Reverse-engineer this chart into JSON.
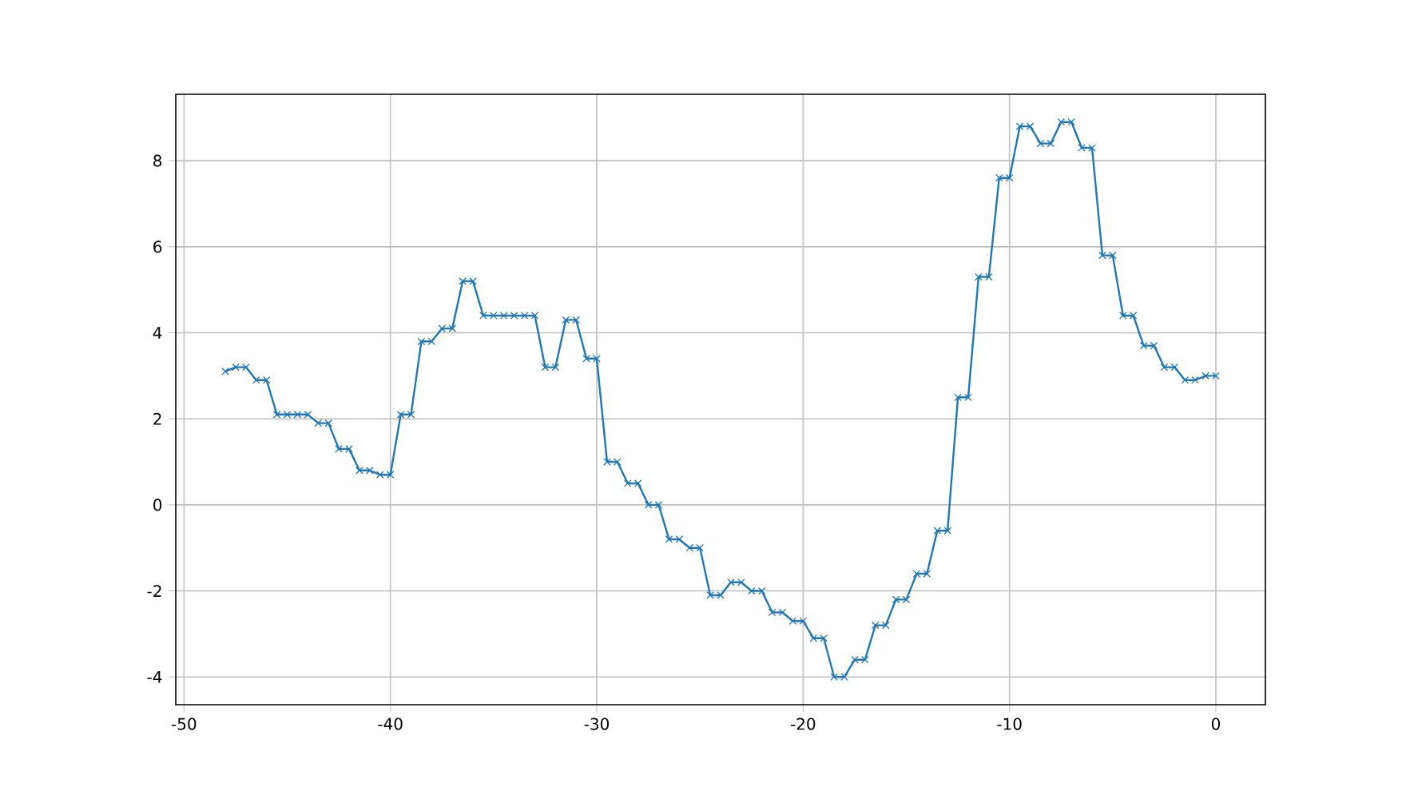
{
  "chart_data": {
    "type": "line",
    "x": [
      -48,
      -47.5,
      -47,
      -46.5,
      -46,
      -45.5,
      -45,
      -44.5,
      -44,
      -43.5,
      -43,
      -42.5,
      -42,
      -41.5,
      -41,
      -40.5,
      -40,
      -39.5,
      -39,
      -38.5,
      -38,
      -37.5,
      -37,
      -36.5,
      -36,
      -35.5,
      -35,
      -34.5,
      -34,
      -33.5,
      -33,
      -32.5,
      -32,
      -31.5,
      -31,
      -30.5,
      -30,
      -29.5,
      -29,
      -28.5,
      -28,
      -27.5,
      -27,
      -26.5,
      -26,
      -25.5,
      -25,
      -24.5,
      -24,
      -23.5,
      -23,
      -22.5,
      -22,
      -21.5,
      -21,
      -20.5,
      -20,
      -19.5,
      -19,
      -18.5,
      -18,
      -17.5,
      -17,
      -16.5,
      -16,
      -15.5,
      -15,
      -14.5,
      -14,
      -13.5,
      -13,
      -12.5,
      -12,
      -11.5,
      -11,
      -10.5,
      -10,
      -9.5,
      -9,
      -8.5,
      -8,
      -7.5,
      -7,
      -6.5,
      -6,
      -5.5,
      -5,
      -4.5,
      -4,
      -3.5,
      -3,
      -2.5,
      -2,
      -1.5,
      -1,
      -0.5,
      0
    ],
    "values": [
      3.1,
      3.2,
      3.2,
      2.9,
      2.9,
      2.1,
      2.1,
      2.1,
      2.1,
      1.9,
      1.9,
      1.3,
      1.3,
      0.8,
      0.8,
      0.7,
      0.7,
      2.1,
      2.1,
      3.8,
      3.8,
      4.1,
      4.1,
      5.2,
      5.2,
      4.4,
      4.4,
      4.4,
      4.4,
      4.4,
      4.4,
      3.2,
      3.2,
      4.3,
      4.3,
      3.4,
      3.4,
      1.0,
      1.0,
      0.5,
      0.5,
      0.0,
      0.0,
      -0.8,
      -0.8,
      -1.0,
      -1.0,
      -2.1,
      -2.1,
      -1.8,
      -1.8,
      -2.0,
      -2.0,
      -2.5,
      -2.5,
      -2.7,
      -2.7,
      -3.1,
      -3.1,
      -4.0,
      -4.0,
      -3.6,
      -3.6,
      -2.8,
      -2.8,
      -2.2,
      -2.2,
      -1.6,
      -1.6,
      -0.6,
      -0.6,
      2.5,
      2.5,
      5.3,
      5.3,
      7.6,
      7.6,
      8.8,
      8.8,
      8.4,
      8.4,
      8.9,
      8.9,
      8.3,
      8.3,
      5.8,
      5.8,
      4.4,
      4.4,
      3.7,
      3.7,
      3.2,
      3.2,
      2.9,
      2.9,
      3.0,
      3.0
    ],
    "color": "#1f77b4",
    "marker": "cross",
    "xlim": [
      -50.4,
      2.4
    ],
    "ylim": [
      -4.645,
      9.545
    ],
    "xticks": [
      -50,
      -40,
      -30,
      -20,
      -10,
      0
    ],
    "yticks": [
      -4,
      -2,
      0,
      2,
      4,
      6,
      8
    ],
    "grid": true
  }
}
